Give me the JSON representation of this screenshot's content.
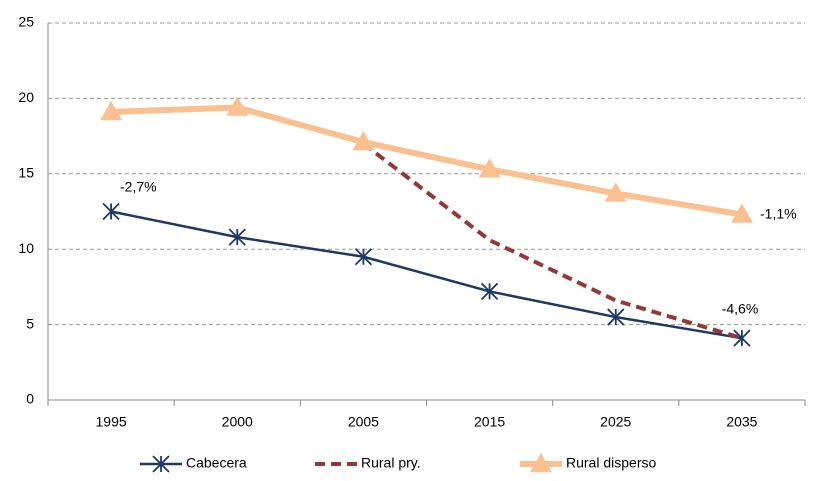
{
  "chart_data": {
    "type": "line",
    "categories": [
      "1995",
      "2000",
      "2005",
      "2015",
      "2025",
      "2035"
    ],
    "series": [
      {
        "name": "Cabecera",
        "color": "#1f3864",
        "marker": "star",
        "values": [
          12.5,
          10.8,
          9.5,
          7.2,
          5.5,
          4.1
        ]
      },
      {
        "name": "Rural pry.",
        "color": "#953735",
        "dashed": true,
        "values": [
          null,
          null,
          17.0,
          10.6,
          6.6,
          4.1
        ]
      },
      {
        "name": "Rural disperso",
        "color": "#fac090",
        "marker": "triangle",
        "values": [
          19.1,
          19.4,
          17.1,
          15.3,
          13.7,
          12.3
        ]
      }
    ],
    "annotations": [
      "-2,7%",
      "-1,1%",
      "-4,6%"
    ],
    "ylim": [
      0,
      25
    ],
    "yticks": [
      0,
      5,
      10,
      15,
      20,
      25
    ],
    "grid": true,
    "legend": "bottom"
  }
}
